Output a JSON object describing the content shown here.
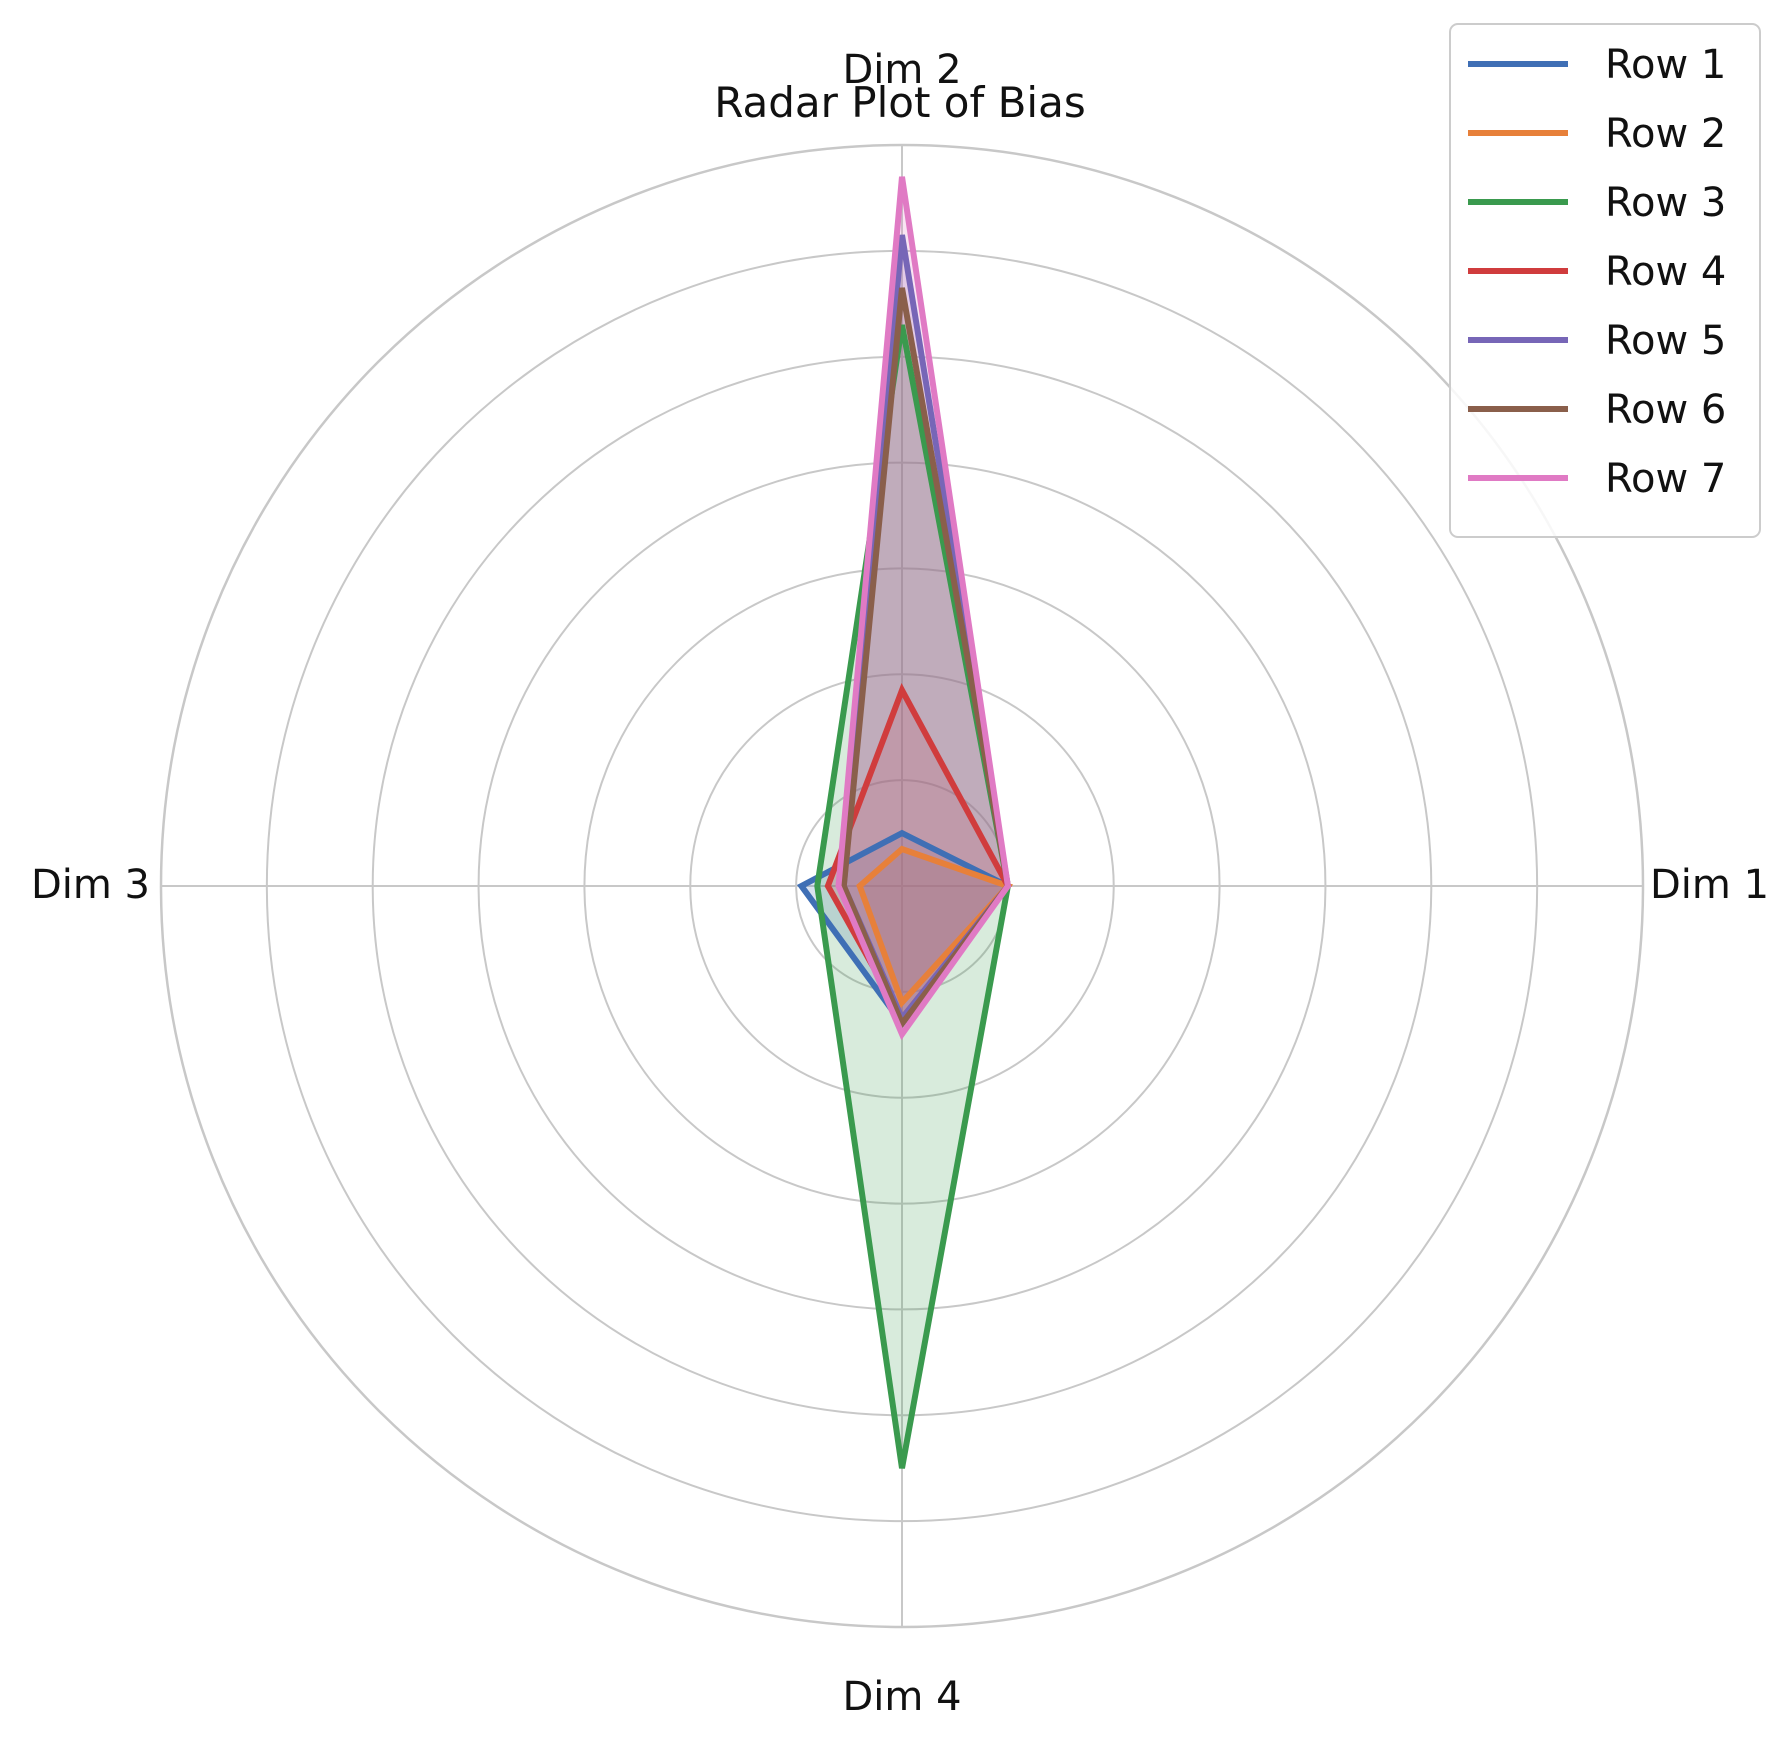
{
  "chart_data": {
    "type": "radar",
    "title": "Radar Plot of Bias",
    "axes": [
      "Dim 1",
      "Dim 2",
      "Dim 3",
      "Dim 4"
    ],
    "rmax": 7,
    "ring_count": 7,
    "grid": true,
    "legend_placement": "top-right",
    "series": [
      {
        "name": "Row 1",
        "color": "#3f6fb5",
        "values": [
          1.0,
          0.5,
          0.95,
          1.3
        ]
      },
      {
        "name": "Row 2",
        "color": "#e7803a",
        "values": [
          1.0,
          0.35,
          0.4,
          1.1
        ]
      },
      {
        "name": "Row 3",
        "color": "#3a9a4e",
        "values": [
          1.0,
          5.3,
          0.8,
          5.5
        ]
      },
      {
        "name": "Row 4",
        "color": "#d03c3d",
        "values": [
          1.0,
          1.85,
          0.7,
          1.25
        ]
      },
      {
        "name": "Row 5",
        "color": "#7766b7",
        "values": [
          1.0,
          6.15,
          0.55,
          1.25
        ]
      },
      {
        "name": "Row 6",
        "color": "#8a5f4b",
        "values": [
          1.0,
          5.65,
          0.55,
          1.3
        ]
      },
      {
        "name": "Row 7",
        "color": "#e07ac4",
        "values": [
          1.0,
          6.7,
          0.6,
          1.4
        ]
      }
    ]
  }
}
